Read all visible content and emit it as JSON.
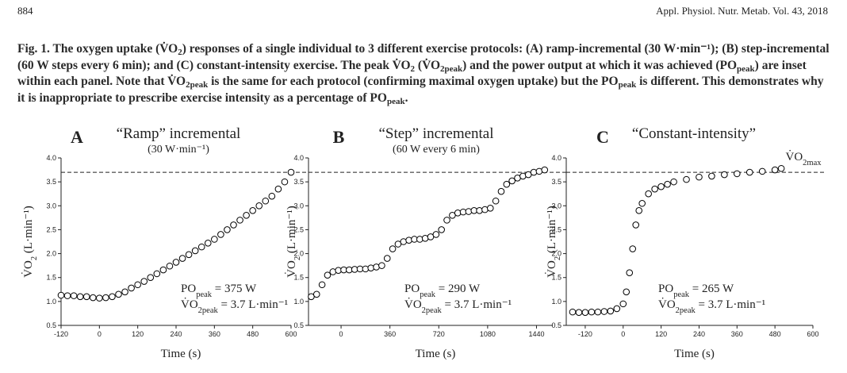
{
  "header": {
    "page_number": "884",
    "journal": "Appl. Physiol. Nutr. Metab. Vol. 43, 2018"
  },
  "caption": [
    {
      "text": "Fig. 1. The oxygen uptake (V̇O"
    },
    {
      "text": "2",
      "sub": true
    },
    {
      "text": ") responses of a single individual to 3 different exercise protocols: (A) ramp-incremental (30 W·min⁻¹); (B) step-incremental (60 W steps every 6 min); and (C) constant-intensity exercise. The peak V̇O"
    },
    {
      "text": "2",
      "sub": true
    },
    {
      "text": " (V̇O"
    },
    {
      "text": "2peak",
      "sub": true
    },
    {
      "text": ") and the power output at which it was achieved (PO"
    },
    {
      "text": "peak",
      "sub": true
    },
    {
      "text": ") are inset within each panel. Note that V̇O"
    },
    {
      "text": "2peak",
      "sub": true
    },
    {
      "text": " is the same for each protocol (confirming maximal oxygen uptake) but the PO"
    },
    {
      "text": "peak",
      "sub": true
    },
    {
      "text": " is different. This demonstrates why it is inappropriate to prescribe exercise intensity as a percentage of PO"
    },
    {
      "text": "peak",
      "sub": true
    },
    {
      "text": "."
    }
  ],
  "chart_data": [
    {
      "type": "scatter",
      "panel": "A",
      "title": "“Ramp” incremental",
      "subtitle": "(30 W·min⁻¹)",
      "xlabel": "Time (s)",
      "ylabel": [
        {
          "text": "V̇O"
        },
        {
          "text": "2",
          "sub": true
        },
        {
          "text": " (L·min⁻¹)"
        }
      ],
      "xlim": [
        -120,
        600
      ],
      "xticks": [
        -120,
        0,
        120,
        240,
        360,
        480,
        600
      ],
      "ylim": [
        0.5,
        4.0
      ],
      "yticks": [
        0.5,
        {
          "value": 1,
          "label": "1.0"
        },
        1.5,
        {
          "value": 2,
          "label": "2.0"
        },
        2.5,
        {
          "value": 3,
          "label": "3.0"
        },
        3.5,
        {
          "value": 4,
          "label": "4.0"
        }
      ],
      "reference_line": 3.7,
      "color": "#000000",
      "x": [
        -120,
        -100,
        -80,
        -60,
        -40,
        -20,
        0,
        20,
        40,
        60,
        80,
        100,
        120,
        140,
        160,
        180,
        200,
        220,
        240,
        260,
        280,
        300,
        320,
        340,
        360,
        380,
        400,
        420,
        440,
        460,
        480,
        500,
        520,
        540,
        560,
        580,
        600
      ],
      "values": [
        1.13,
        1.12,
        1.12,
        1.1,
        1.1,
        1.08,
        1.07,
        1.08,
        1.1,
        1.15,
        1.2,
        1.28,
        1.35,
        1.42,
        1.5,
        1.58,
        1.66,
        1.74,
        1.82,
        1.9,
        1.98,
        2.06,
        2.14,
        2.22,
        2.3,
        2.4,
        2.5,
        2.6,
        2.7,
        2.8,
        2.9,
        3.0,
        3.1,
        3.2,
        3.35,
        3.5,
        3.7
      ],
      "annotations": [
        [
          {
            "text": "PO"
          },
          {
            "text": "peak",
            "sub": true
          },
          {
            "text": "  =  375 W"
          }
        ],
        [
          {
            "text": "V̇O"
          },
          {
            "text": "2peak",
            "sub": true
          },
          {
            "text": " = 3.7 L·min⁻¹"
          }
        ]
      ]
    },
    {
      "type": "scatter",
      "panel": "B",
      "title": "“Step” incremental",
      "subtitle": "(60 W every 6 min)",
      "xlabel": "Time (s)",
      "ylabel": [
        {
          "text": "V̇O"
        },
        {
          "text": "2",
          "sub": true
        },
        {
          "text": " (L·min⁻¹)"
        }
      ],
      "xlim": [
        -240,
        1560
      ],
      "xticks": [
        0,
        360,
        720,
        1080,
        1440
      ],
      "ylim": [
        0.5,
        4.0
      ],
      "yticks": [
        0.5,
        {
          "value": 1,
          "label": "1.0"
        },
        1.5,
        {
          "value": 2,
          "label": "2.0"
        },
        2.5,
        {
          "value": 3,
          "label": "3.0"
        },
        3.5,
        {
          "value": 4,
          "label": "4.0"
        }
      ],
      "reference_line": 3.7,
      "color": "#000000",
      "x": [
        -220,
        -180,
        -140,
        -100,
        -60,
        -20,
        20,
        60,
        100,
        140,
        180,
        220,
        260,
        300,
        340,
        380,
        420,
        460,
        500,
        540,
        580,
        620,
        660,
        700,
        740,
        780,
        820,
        860,
        900,
        940,
        980,
        1020,
        1060,
        1100,
        1140,
        1180,
        1220,
        1260,
        1300,
        1340,
        1380,
        1420,
        1460,
        1500
      ],
      "values": [
        1.1,
        1.15,
        1.35,
        1.55,
        1.62,
        1.65,
        1.66,
        1.66,
        1.67,
        1.68,
        1.68,
        1.7,
        1.72,
        1.75,
        1.9,
        2.1,
        2.2,
        2.25,
        2.28,
        2.3,
        2.3,
        2.32,
        2.35,
        2.4,
        2.5,
        2.7,
        2.8,
        2.85,
        2.87,
        2.88,
        2.9,
        2.9,
        2.92,
        2.95,
        3.1,
        3.3,
        3.45,
        3.52,
        3.58,
        3.62,
        3.65,
        3.7,
        3.72,
        3.75
      ],
      "annotations": [
        [
          {
            "text": "PO"
          },
          {
            "text": "peak",
            "sub": true
          },
          {
            "text": "  =  290 W"
          }
        ],
        [
          {
            "text": "V̇O"
          },
          {
            "text": "2peak",
            "sub": true
          },
          {
            "text": " = 3.7 L·min⁻¹"
          }
        ]
      ]
    },
    {
      "type": "scatter",
      "panel": "C",
      "title": "“Constant-intensity”",
      "xlabel": "Time (s)",
      "ylabel": [
        {
          "text": "V̇O"
        },
        {
          "text": "2",
          "sub": true
        },
        {
          "text": " (L·min⁻¹)"
        }
      ],
      "xlim": [
        -180,
        600
      ],
      "xticks": [
        -120,
        0,
        120,
        240,
        360,
        480,
        600
      ],
      "ylim": [
        0.5,
        4.0
      ],
      "yticks": [
        0.5,
        {
          "value": 1,
          "label": "1.0"
        },
        1.5,
        {
          "value": 2,
          "label": "2.0"
        },
        2.5,
        {
          "value": 3,
          "label": "3.0"
        },
        3.5,
        {
          "value": 4,
          "label": "4.0"
        }
      ],
      "reference_line": 3.7,
      "color": "#000000",
      "line_label": [
        {
          "text": "V̇O"
        },
        {
          "text": "2max",
          "sub": true
        }
      ],
      "x": [
        -160,
        -140,
        -120,
        -100,
        -80,
        -60,
        -40,
        -20,
        0,
        10,
        20,
        30,
        40,
        50,
        60,
        80,
        100,
        120,
        140,
        160,
        200,
        240,
        280,
        320,
        360,
        400,
        440,
        480,
        500
      ],
      "values": [
        0.78,
        0.77,
        0.77,
        0.78,
        0.78,
        0.79,
        0.8,
        0.85,
        0.95,
        1.2,
        1.6,
        2.1,
        2.6,
        2.9,
        3.05,
        3.25,
        3.35,
        3.4,
        3.45,
        3.5,
        3.55,
        3.6,
        3.62,
        3.65,
        3.67,
        3.7,
        3.72,
        3.75,
        3.78
      ],
      "annotations": [
        [
          {
            "text": "PO"
          },
          {
            "text": "peak",
            "sub": true
          },
          {
            "text": "  =  265 W"
          }
        ],
        [
          {
            "text": "V̇O"
          },
          {
            "text": "2peak",
            "sub": true
          },
          {
            "text": " = 3.7 L·min⁻¹"
          }
        ]
      ]
    }
  ]
}
